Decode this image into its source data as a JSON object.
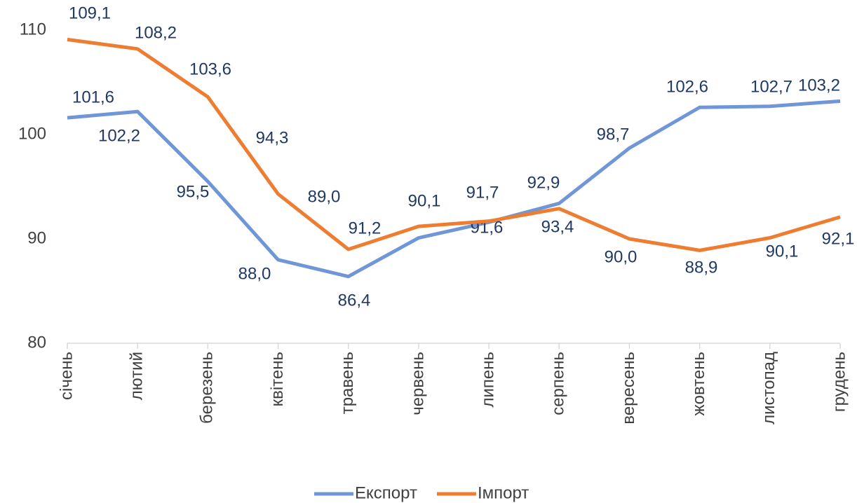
{
  "chart_data": {
    "type": "line",
    "categories": [
      "січень",
      "лютий",
      "березень",
      "квітень",
      "травень",
      "червень",
      "липень",
      "серпень",
      "вересень",
      "жовтень",
      "листопад",
      "грудень"
    ],
    "series": [
      {
        "name": "Експорт",
        "color": "#6f96d7",
        "values": [
          101.6,
          102.2,
          95.5,
          88.0,
          86.4,
          90.1,
          91.6,
          93.4,
          98.7,
          102.6,
          102.7,
          103.2
        ],
        "value_labels": [
          "101,6",
          "102,2",
          "95,5",
          "88,0",
          "86,4",
          "90,1",
          "91,6",
          "93,4",
          "98,7",
          "102,6",
          "102,7",
          "103,2"
        ]
      },
      {
        "name": "Імпорт",
        "color": "#ee7d31",
        "values": [
          109.1,
          108.2,
          103.6,
          94.3,
          89.0,
          91.2,
          91.7,
          92.9,
          90.0,
          88.9,
          90.1,
          92.1
        ],
        "value_labels": [
          "109,1",
          "108,2",
          "103,6",
          "94,3",
          "89,0",
          "91,2",
          "91,7",
          "92,9",
          "90,0",
          "88,9",
          "90,1",
          "92,1"
        ]
      }
    ],
    "ylim": [
      80,
      110
    ],
    "yticks": [
      80,
      90,
      100,
      110
    ],
    "grid": false,
    "legend": "bottom"
  }
}
